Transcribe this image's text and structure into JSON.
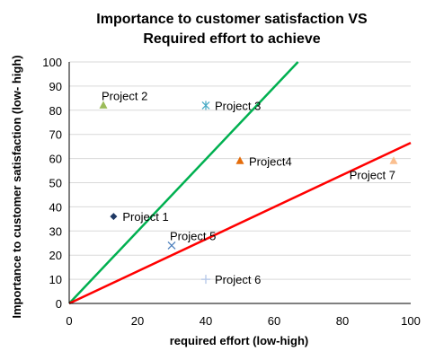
{
  "chart_data": {
    "type": "scatter",
    "title_lines": [
      "Importance to customer satisfaction VS",
      "Required effort to achieve"
    ],
    "xlabel": "required effort (low-high)",
    "ylabel": "Importance to customer satisfaction (low- high)",
    "xlim": [
      0,
      100
    ],
    "ylim": [
      0,
      100
    ],
    "xticks": [
      0,
      20,
      40,
      60,
      80,
      100
    ],
    "yticks": [
      0,
      10,
      20,
      30,
      40,
      50,
      60,
      70,
      80,
      90,
      100
    ],
    "grid": "horizontal",
    "points": [
      {
        "label": "Project 1",
        "x": 13,
        "y": 36,
        "marker": "diamond",
        "color": "#1f3864",
        "label_pos": "right"
      },
      {
        "label": "Project 2",
        "x": 10,
        "y": 82,
        "marker": "triangle",
        "color": "#9bbb59",
        "label_pos": "above-right"
      },
      {
        "label": "Project 3",
        "x": 40,
        "y": 82,
        "marker": "star",
        "color": "#4bacc6",
        "label_pos": "right"
      },
      {
        "label": "Project4",
        "x": 50,
        "y": 59,
        "marker": "triangle",
        "color": "#e46c0a",
        "label_pos": "right"
      },
      {
        "label": "Project 5",
        "x": 30,
        "y": 24,
        "marker": "x",
        "color": "#4f81bd",
        "label_pos": "above-right"
      },
      {
        "label": "Project 6",
        "x": 40,
        "y": 10,
        "marker": "plus",
        "color": "#b4c7e7",
        "label_pos": "right"
      },
      {
        "label": "Project 7",
        "x": 95,
        "y": 59,
        "marker": "triangle",
        "color": "#fabf8f",
        "label_pos": "below-left"
      }
    ],
    "lines": [
      {
        "x": [
          0,
          67
        ],
        "y": [
          0,
          100
        ],
        "color": "#00b050"
      },
      {
        "x": [
          0,
          100
        ],
        "y": [
          0,
          66.5
        ],
        "color": "#ff0000"
      }
    ]
  }
}
